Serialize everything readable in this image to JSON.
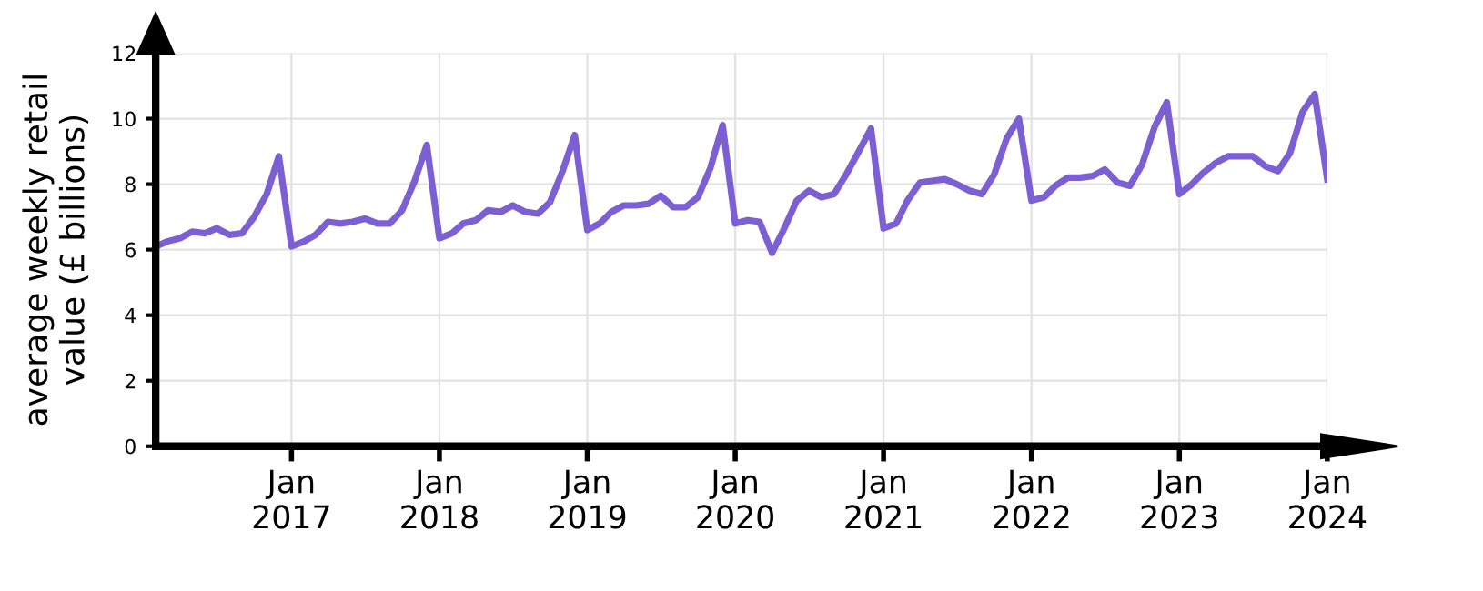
{
  "chart_data": {
    "type": "line",
    "ylabel": "average weekly retail\nvalue (£ billions)",
    "series": [
      {
        "color": "#7b5fd3",
        "x": [
          "2016-02",
          "2016-03",
          "2016-04",
          "2016-05",
          "2016-06",
          "2016-07",
          "2016-08",
          "2016-09",
          "2016-10",
          "2016-11",
          "2016-12",
          "2017-01",
          "2017-02",
          "2017-03",
          "2017-04",
          "2017-05",
          "2017-06",
          "2017-07",
          "2017-08",
          "2017-09",
          "2017-10",
          "2017-11",
          "2017-12",
          "2018-01",
          "2018-02",
          "2018-03",
          "2018-04",
          "2018-05",
          "2018-06",
          "2018-07",
          "2018-08",
          "2018-09",
          "2018-10",
          "2018-11",
          "2018-12",
          "2019-01",
          "2019-02",
          "2019-03",
          "2019-04",
          "2019-05",
          "2019-06",
          "2019-07",
          "2019-08",
          "2019-09",
          "2019-10",
          "2019-11",
          "2019-12",
          "2020-01",
          "2020-02",
          "2020-03",
          "2020-04",
          "2020-05",
          "2020-06",
          "2020-07",
          "2020-08",
          "2020-09",
          "2020-10",
          "2020-11",
          "2020-12",
          "2021-01",
          "2021-02",
          "2021-03",
          "2021-04",
          "2021-05",
          "2021-06",
          "2021-07",
          "2021-08",
          "2021-09",
          "2021-10",
          "2021-11",
          "2021-12",
          "2022-01",
          "2022-02",
          "2022-03",
          "2022-04",
          "2022-05",
          "2022-06",
          "2022-07",
          "2022-08",
          "2022-09",
          "2022-10",
          "2022-11",
          "2022-12",
          "2023-01",
          "2023-02",
          "2023-03",
          "2023-04",
          "2023-05",
          "2023-06",
          "2023-07",
          "2023-08",
          "2023-09",
          "2023-10",
          "2023-11",
          "2023-12",
          "2024-01"
        ],
        "values": [
          6.1,
          6.25,
          6.35,
          6.55,
          6.5,
          6.65,
          6.45,
          6.5,
          7.0,
          7.7,
          8.85,
          6.1,
          6.25,
          6.45,
          6.85,
          6.8,
          6.85,
          6.95,
          6.8,
          6.8,
          7.2,
          8.1,
          9.2,
          6.35,
          6.5,
          6.8,
          6.9,
          7.2,
          7.15,
          7.35,
          7.15,
          7.1,
          7.45,
          8.4,
          9.5,
          6.6,
          6.8,
          7.15,
          7.35,
          7.35,
          7.4,
          7.65,
          7.3,
          7.3,
          7.6,
          8.5,
          9.8,
          6.8,
          6.9,
          6.85,
          5.9,
          6.65,
          7.5,
          7.8,
          7.6,
          7.7,
          8.3,
          9.0,
          9.7,
          6.65,
          6.8,
          7.5,
          8.05,
          8.1,
          8.15,
          8.0,
          7.8,
          7.7,
          8.3,
          9.4,
          10.0,
          7.5,
          7.6,
          7.95,
          8.2,
          8.2,
          8.25,
          8.45,
          8.05,
          7.95,
          8.6,
          9.75,
          10.5,
          7.7,
          8.0,
          8.35,
          8.65,
          8.85,
          8.85,
          8.85,
          8.55,
          8.4,
          8.95,
          10.2,
          10.75,
          8.15
        ]
      }
    ],
    "xlim": [
      "2016-02",
      "2024-01"
    ],
    "ylim": [
      0,
      12
    ],
    "yticks": [
      0,
      2,
      4,
      6,
      8,
      10,
      12
    ],
    "xticks": [
      {
        "value": "2017-01",
        "label": "Jan\n2017"
      },
      {
        "value": "2018-01",
        "label": "Jan\n2018"
      },
      {
        "value": "2019-01",
        "label": "Jan\n2019"
      },
      {
        "value": "2020-01",
        "label": "Jan\n2020"
      },
      {
        "value": "2021-01",
        "label": "Jan\n2021"
      },
      {
        "value": "2022-01",
        "label": "Jan\n2022"
      },
      {
        "value": "2023-01",
        "label": "Jan\n2023"
      },
      {
        "value": "2024-01",
        "label": "Jan\n2024"
      }
    ],
    "grid": true,
    "marker": "none",
    "line_style": "solid"
  }
}
